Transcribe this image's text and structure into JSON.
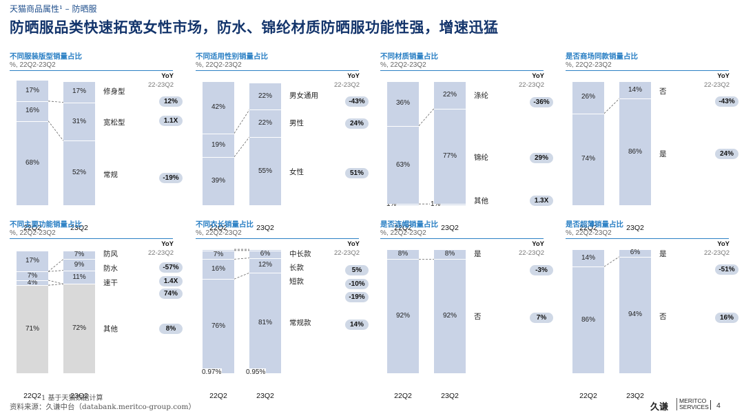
{
  "header": {
    "breadcrumb": "天猫商品属性¹ – 防晒服",
    "headline": "防晒服品类快速拓宽女性市场，防水、锦纶材质防晒服功能性强，增速迅猛"
  },
  "common": {
    "subtitle": "%,  22Q2-23Q2",
    "yoy_label": "YoY",
    "yoy_period": "22-23Q2",
    "x_labels": [
      "22Q2",
      "23Q2"
    ]
  },
  "chart_data": [
    {
      "type": "bar",
      "stacked": true,
      "title": "不同服装版型销量占比",
      "categories": [
        "22Q2",
        "23Q2"
      ],
      "series": [
        {
          "name": "常规",
          "values": [
            68,
            52
          ],
          "yoy": "-19%"
        },
        {
          "name": "宽松型",
          "values": [
            16,
            31
          ],
          "yoy": "1.1X"
        },
        {
          "name": "修身型",
          "values": [
            17,
            17
          ],
          "yoy": "12%"
        }
      ],
      "ylim": [
        0,
        100
      ]
    },
    {
      "type": "bar",
      "stacked": true,
      "title": "不同适用性别销量占比",
      "categories": [
        "22Q2",
        "23Q2"
      ],
      "series": [
        {
          "name": "女性",
          "values": [
            39,
            55
          ],
          "yoy": "51%"
        },
        {
          "name": "男性",
          "values": [
            19,
            22
          ],
          "yoy": "24%"
        },
        {
          "name": "男女通用",
          "values": [
            42,
            22
          ],
          "yoy": "-43%"
        }
      ],
      "ylim": [
        0,
        100
      ]
    },
    {
      "type": "bar",
      "stacked": true,
      "title": "不同材质销量占比",
      "categories": [
        "22Q2",
        "23Q2"
      ],
      "series": [
        {
          "name": "其他",
          "values": [
            1,
            1
          ],
          "yoy": "1.3X"
        },
        {
          "name": "锦纶",
          "values": [
            63,
            77
          ],
          "yoy": "29%"
        },
        {
          "name": "涤纶",
          "values": [
            36,
            22
          ],
          "yoy": "-36%"
        }
      ],
      "ylim": [
        0,
        100
      ]
    },
    {
      "type": "bar",
      "stacked": true,
      "title": "是否商场同款销量占比",
      "categories": [
        "22Q2",
        "23Q2"
      ],
      "series": [
        {
          "name": "是",
          "values": [
            74,
            86
          ],
          "yoy": "24%"
        },
        {
          "name": "否",
          "values": [
            26,
            14
          ],
          "yoy": "-43%"
        }
      ],
      "ylim": [
        0,
        100
      ]
    },
    {
      "type": "bar",
      "stacked": true,
      "title": "不同主要功能销量占比",
      "categories": [
        "22Q2",
        "23Q2"
      ],
      "series": [
        {
          "name": "其他",
          "values": [
            71,
            72
          ],
          "yoy": "8%",
          "gray": true
        },
        {
          "name": "",
          "values": [
            4,
            0
          ],
          "yoy": "74%"
        },
        {
          "name": "速干",
          "values": [
            7,
            11
          ],
          "yoy": "1.4X"
        },
        {
          "name": "防水",
          "values": [
            0,
            9
          ],
          "yoy": "-57%"
        },
        {
          "name": "防风",
          "values": [
            17,
            7
          ],
          "yoy": ""
        }
      ],
      "ylim": [
        0,
        100
      ]
    },
    {
      "type": "bar",
      "stacked": true,
      "title": "不同衣长销量占比",
      "categories": [
        "22Q2",
        "23Q2"
      ],
      "series": [
        {
          "name": "常规款",
          "values": [
            76,
            81
          ],
          "yoy": "14%"
        },
        {
          "name": "短款",
          "values": [
            16,
            12
          ],
          "yoy": "-10%"
        },
        {
          "name": "长款",
          "values": [
            7,
            6
          ],
          "yoy": "5%"
        },
        {
          "name": "中长款",
          "values": [
            0.97,
            0.95
          ],
          "yoy": ""
        },
        {
          "name": "",
          "values": [
            0,
            0
          ],
          "yoy": "-19%"
        }
      ],
      "ylim": [
        0,
        100
      ]
    },
    {
      "type": "bar",
      "stacked": true,
      "title": "是否连帽销量占比",
      "categories": [
        "22Q2",
        "23Q2"
      ],
      "series": [
        {
          "name": "否",
          "values": [
            92,
            92
          ],
          "yoy": "7%"
        },
        {
          "name": "是",
          "values": [
            8,
            8
          ],
          "yoy": "-3%"
        }
      ],
      "ylim": [
        0,
        100
      ]
    },
    {
      "type": "bar",
      "stacked": true,
      "title": "是否超薄销量占比",
      "categories": [
        "22Q2",
        "23Q2"
      ],
      "series": [
        {
          "name": "否",
          "values": [
            86,
            94
          ],
          "yoy": "16%"
        },
        {
          "name": "是",
          "values": [
            14,
            6
          ],
          "yoy": "-51%"
        }
      ],
      "ylim": [
        0,
        100
      ]
    }
  ],
  "colors": {
    "bar": "#c9d3e6",
    "bar_gray": "#d9d9d9",
    "accent": "#2a7fc4",
    "pill": "#cfd8e6"
  },
  "footer": {
    "footnote": "1   基于天猫数据计算",
    "source": "资料来源：久谦中台（databank.meritco-group.com）",
    "logo_cn": "久谦",
    "logo_en1": "MERITCO",
    "logo_en2": "SERVICES",
    "page": "4"
  }
}
